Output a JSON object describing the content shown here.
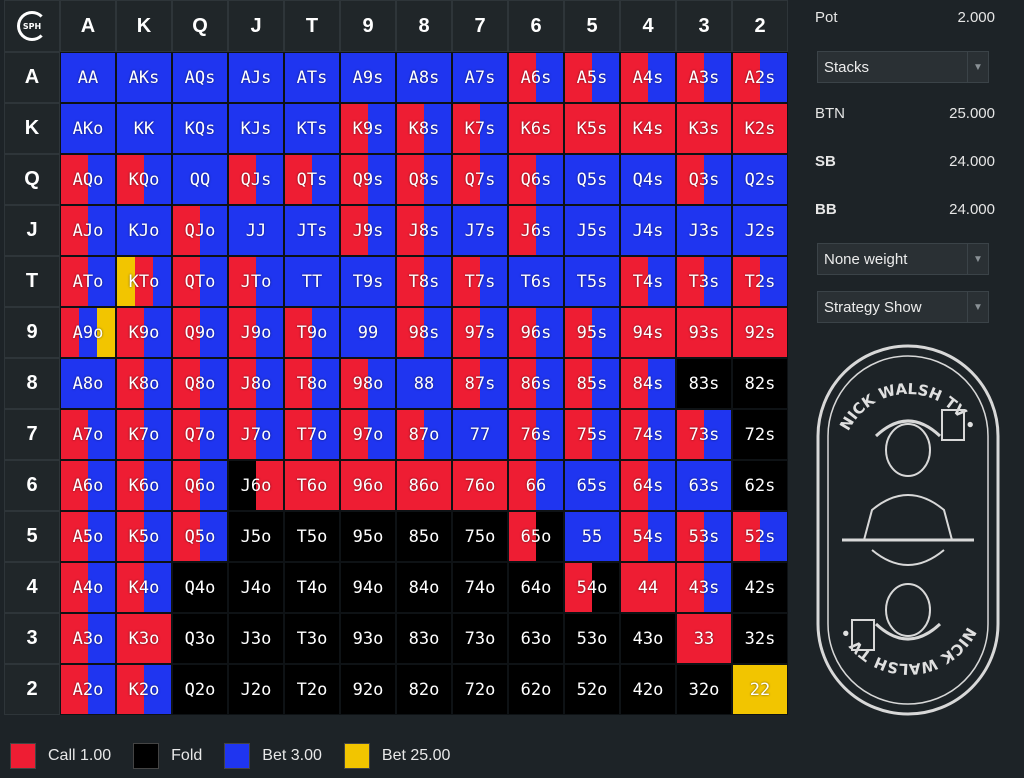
{
  "matrix": {
    "ranks": [
      "A",
      "K",
      "Q",
      "J",
      "T",
      "9",
      "8",
      "7",
      "6",
      "5",
      "4",
      "3",
      "2"
    ],
    "logo_text": "SPH",
    "hands": [
      [
        "AA",
        "AKs",
        "AQs",
        "AJs",
        "ATs",
        "A9s",
        "A8s",
        "A7s",
        "A6s",
        "A5s",
        "A4s",
        "A3s",
        "A2s"
      ],
      [
        "AKo",
        "KK",
        "KQs",
        "KJs",
        "KTs",
        "K9s",
        "K8s",
        "K7s",
        "K6s",
        "K5s",
        "K4s",
        "K3s",
        "K2s"
      ],
      [
        "AQo",
        "KQo",
        "QQ",
        "QJs",
        "QTs",
        "Q9s",
        "Q8s",
        "Q7s",
        "Q6s",
        "Q5s",
        "Q4s",
        "Q3s",
        "Q2s"
      ],
      [
        "AJo",
        "KJo",
        "QJo",
        "JJ",
        "JTs",
        "J9s",
        "J8s",
        "J7s",
        "J6s",
        "J5s",
        "J4s",
        "J3s",
        "J2s"
      ],
      [
        "ATo",
        "KTo",
        "QTo",
        "JTo",
        "TT",
        "T9s",
        "T8s",
        "T7s",
        "T6s",
        "T5s",
        "T4s",
        "T3s",
        "T2s"
      ],
      [
        "A9o",
        "K9o",
        "Q9o",
        "J9o",
        "T9o",
        "99",
        "98s",
        "97s",
        "96s",
        "95s",
        "94s",
        "93s",
        "92s"
      ],
      [
        "A8o",
        "K8o",
        "Q8o",
        "J8o",
        "T8o",
        "98o",
        "88",
        "87s",
        "86s",
        "85s",
        "84s",
        "83s",
        "82s"
      ],
      [
        "A7o",
        "K7o",
        "Q7o",
        "J7o",
        "T7o",
        "97o",
        "87o",
        "77",
        "76s",
        "75s",
        "74s",
        "73s",
        "72s"
      ],
      [
        "A6o",
        "K6o",
        "Q6o",
        "J6o",
        "T6o",
        "96o",
        "86o",
        "76o",
        "66",
        "65s",
        "64s",
        "63s",
        "62s"
      ],
      [
        "A5o",
        "K5o",
        "Q5o",
        "J5o",
        "T5o",
        "95o",
        "85o",
        "75o",
        "65o",
        "55",
        "54s",
        "53s",
        "52s"
      ],
      [
        "A4o",
        "K4o",
        "Q4o",
        "J4o",
        "T4o",
        "94o",
        "84o",
        "74o",
        "64o",
        "54o",
        "44",
        "43s",
        "42s"
      ],
      [
        "A3o",
        "K3o",
        "Q3o",
        "J3o",
        "T3o",
        "93o",
        "83o",
        "73o",
        "63o",
        "53o",
        "43o",
        "33",
        "32s"
      ],
      [
        "A2o",
        "K2o",
        "Q2o",
        "J2o",
        "T2o",
        "92o",
        "82o",
        "72o",
        "62o",
        "52o",
        "42o",
        "32o",
        "22"
      ]
    ],
    "strategy": [
      [
        "B",
        "B",
        "B",
        "B",
        "B",
        "B",
        "B",
        "B",
        "RB",
        "RB",
        "RB",
        "RB",
        "RB"
      ],
      [
        "B",
        "B",
        "B",
        "B",
        "B",
        "RB",
        "RB",
        "RB",
        "R",
        "R",
        "R",
        "R",
        "R"
      ],
      [
        "RB",
        "RB",
        "B",
        "RB",
        "RB",
        "RB",
        "RB",
        "RB",
        "RB",
        "B",
        "B",
        "RB",
        "B"
      ],
      [
        "RB",
        "B",
        "RB",
        "B",
        "B",
        "RB",
        "RB",
        "B",
        "RB",
        "B",
        "B",
        "B",
        "B"
      ],
      [
        "RB",
        "YRB",
        "RB",
        "RB",
        "B",
        "B",
        "RB",
        "RB",
        "B",
        "B",
        "RB",
        "RB",
        "RB"
      ],
      [
        "RBY",
        "RB",
        "RB",
        "RB",
        "RB",
        "B",
        "RB",
        "RB",
        "RB",
        "RB",
        "R",
        "R",
        "R"
      ],
      [
        "B",
        "RB",
        "RB",
        "RB",
        "RB",
        "RB",
        "B",
        "RB",
        "RB",
        "RB",
        "RB",
        "K",
        "K"
      ],
      [
        "RB",
        "RB",
        "RB",
        "RB",
        "RB",
        "RB",
        "RB",
        "B",
        "RB",
        "RB",
        "RB",
        "RB",
        "K"
      ],
      [
        "RB",
        "RB",
        "RB",
        "KR",
        "R",
        "R",
        "R",
        "R",
        "RB",
        "B",
        "RB",
        "B",
        "K"
      ],
      [
        "RB",
        "RB",
        "RB",
        "K",
        "K",
        "K",
        "K",
        "K",
        "RK",
        "B",
        "RB",
        "RB",
        "RB"
      ],
      [
        "RB",
        "RB",
        "K",
        "K",
        "K",
        "K",
        "K",
        "K",
        "K",
        "RK",
        "R",
        "RB",
        "K"
      ],
      [
        "RB",
        "R",
        "K",
        "K",
        "K",
        "K",
        "K",
        "K",
        "K",
        "K",
        "K",
        "R",
        "K"
      ],
      [
        "RB",
        "RB",
        "K",
        "K",
        "K",
        "K",
        "K",
        "K",
        "K",
        "K",
        "K",
        "K",
        "Y"
      ]
    ]
  },
  "panel": {
    "pot_label": "Pot",
    "pot_value": "2.000",
    "dropdown1": "Stacks",
    "btn_label": "BTN",
    "btn_value": "25.000",
    "sb_label": "SB",
    "sb_value": "24.000",
    "bb_label": "BB",
    "bb_value": "24.000",
    "dropdown2": "None weight",
    "dropdown3": "Strategy Show",
    "brand_text": "NICK WALSH TV •"
  },
  "legend": [
    {
      "label": "Call 1.00",
      "color": "#ee1d33"
    },
    {
      "label": "Fold",
      "color": "#000000"
    },
    {
      "label": "Bet 3.00",
      "color": "#1f35f0"
    },
    {
      "label": "Bet 25.00",
      "color": "#f2c500"
    }
  ],
  "colors": {
    "R": "#ee1d33",
    "B": "#1f35f0",
    "K": "#000000",
    "Y": "#f2c500"
  }
}
